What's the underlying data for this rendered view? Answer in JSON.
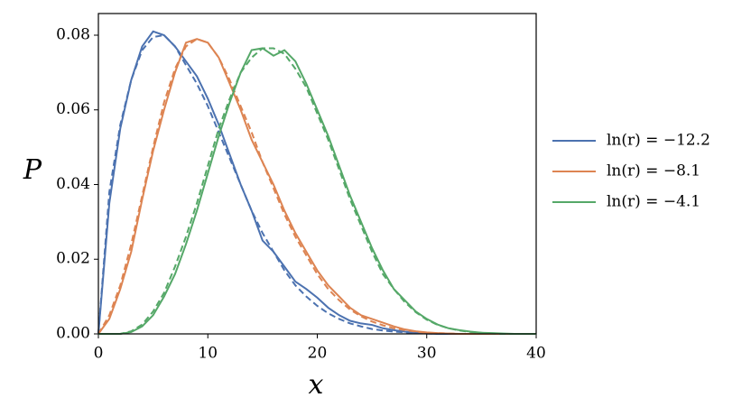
{
  "chart_data": {
    "type": "line",
    "x": [
      0,
      1,
      2,
      3,
      4,
      5,
      6,
      7,
      8,
      9,
      10,
      11,
      12,
      13,
      14,
      15,
      16,
      17,
      18,
      19,
      20,
      21,
      22,
      23,
      24,
      25,
      26,
      27,
      28,
      29,
      30,
      31,
      32,
      33,
      34,
      35,
      36,
      37,
      38,
      39,
      40
    ],
    "series": [
      {
        "name": "ln(r) = −12.2",
        "color": "#4c72b0",
        "linestyle": "solid",
        "values": [
          0,
          0.035,
          0.055,
          0.068,
          0.077,
          0.081,
          0.08,
          0.077,
          0.073,
          0.069,
          0.063,
          0.056,
          0.048,
          0.04,
          0.033,
          0.025,
          0.022,
          0.018,
          0.014,
          0.012,
          0.0097,
          0.007,
          0.005,
          0.0035,
          0.0028,
          0.0024,
          0.0015,
          0.001,
          0.0006,
          0.0003,
          0.0001,
          0,
          0,
          0,
          0,
          0,
          0,
          0,
          0,
          0,
          0
        ]
      },
      {
        "color": "#4c72b0",
        "linestyle": "dashed",
        "values": [
          0,
          0.038,
          0.056,
          0.068,
          0.076,
          0.0795,
          0.08,
          0.077,
          0.072,
          0.067,
          0.061,
          0.054,
          0.047,
          0.04,
          0.033,
          0.027,
          0.022,
          0.017,
          0.013,
          0.01,
          0.0075,
          0.0055,
          0.004,
          0.0028,
          0.002,
          0.0013,
          0.0009,
          0.0006,
          0.0004,
          0.0002,
          0.0001,
          0,
          0,
          0,
          0,
          0,
          0,
          0,
          0,
          0,
          0
        ]
      },
      {
        "name": "ln(r) = −8.1",
        "color": "#dd8452",
        "linestyle": "solid",
        "values": [
          0,
          0.004,
          0.012,
          0.022,
          0.036,
          0.049,
          0.06,
          0.07,
          0.078,
          0.079,
          0.078,
          0.074,
          0.067,
          0.06,
          0.052,
          0.046,
          0.04,
          0.033,
          0.027,
          0.022,
          0.017,
          0.013,
          0.01,
          0.007,
          0.005,
          0.004,
          0.003,
          0.002,
          0.0012,
          0.0007,
          0.0004,
          0.0002,
          0.0001,
          0,
          0,
          0,
          0,
          0,
          0,
          0,
          0
        ]
      },
      {
        "color": "#dd8452",
        "linestyle": "dashed",
        "values": [
          0,
          0.005,
          0.013,
          0.024,
          0.037,
          0.05,
          0.062,
          0.071,
          0.077,
          0.079,
          0.078,
          0.074,
          0.068,
          0.061,
          0.054,
          0.046,
          0.039,
          0.032,
          0.026,
          0.021,
          0.016,
          0.012,
          0.009,
          0.0065,
          0.0047,
          0.0033,
          0.0023,
          0.0015,
          0.001,
          0.0006,
          0.0003,
          0.0002,
          0.0001,
          0,
          0,
          0,
          0,
          0,
          0,
          0,
          0
        ]
      },
      {
        "name": "ln(r) = −4.1",
        "color": "#55a868",
        "linestyle": "solid",
        "values": [
          0,
          0,
          0,
          0.0005,
          0.002,
          0.005,
          0.01,
          0.016,
          0.024,
          0.033,
          0.043,
          0.053,
          0.062,
          0.07,
          0.076,
          0.0765,
          0.0745,
          0.076,
          0.073,
          0.067,
          0.06,
          0.053,
          0.045,
          0.037,
          0.03,
          0.023,
          0.017,
          0.012,
          0.009,
          0.006,
          0.004,
          0.0025,
          0.0015,
          0.001,
          0.0006,
          0.0003,
          0.0002,
          0.0001,
          0,
          0,
          0
        ]
      },
      {
        "color": "#55a868",
        "linestyle": "dashed",
        "values": [
          0,
          0,
          0,
          0.0007,
          0.0025,
          0.006,
          0.011,
          0.018,
          0.026,
          0.035,
          0.045,
          0.055,
          0.063,
          0.07,
          0.074,
          0.0765,
          0.0765,
          0.075,
          0.071,
          0.066,
          0.059,
          0.052,
          0.044,
          0.036,
          0.029,
          0.022,
          0.016,
          0.012,
          0.0085,
          0.0058,
          0.0038,
          0.0024,
          0.0015,
          0.0009,
          0.0005,
          0.0003,
          0.0001,
          0,
          0,
          0,
          0
        ]
      }
    ],
    "xlabel": "x",
    "ylabel": "P",
    "xlim": [
      0,
      40
    ],
    "xticks": [
      0,
      10,
      20,
      30,
      40
    ],
    "ylim": [
      0,
      0.0858
    ],
    "yticks": [
      {
        "value": 0,
        "label": "0.00"
      },
      0.02,
      0.04,
      0.06,
      0.08
    ],
    "legend": "right",
    "grid": false
  }
}
